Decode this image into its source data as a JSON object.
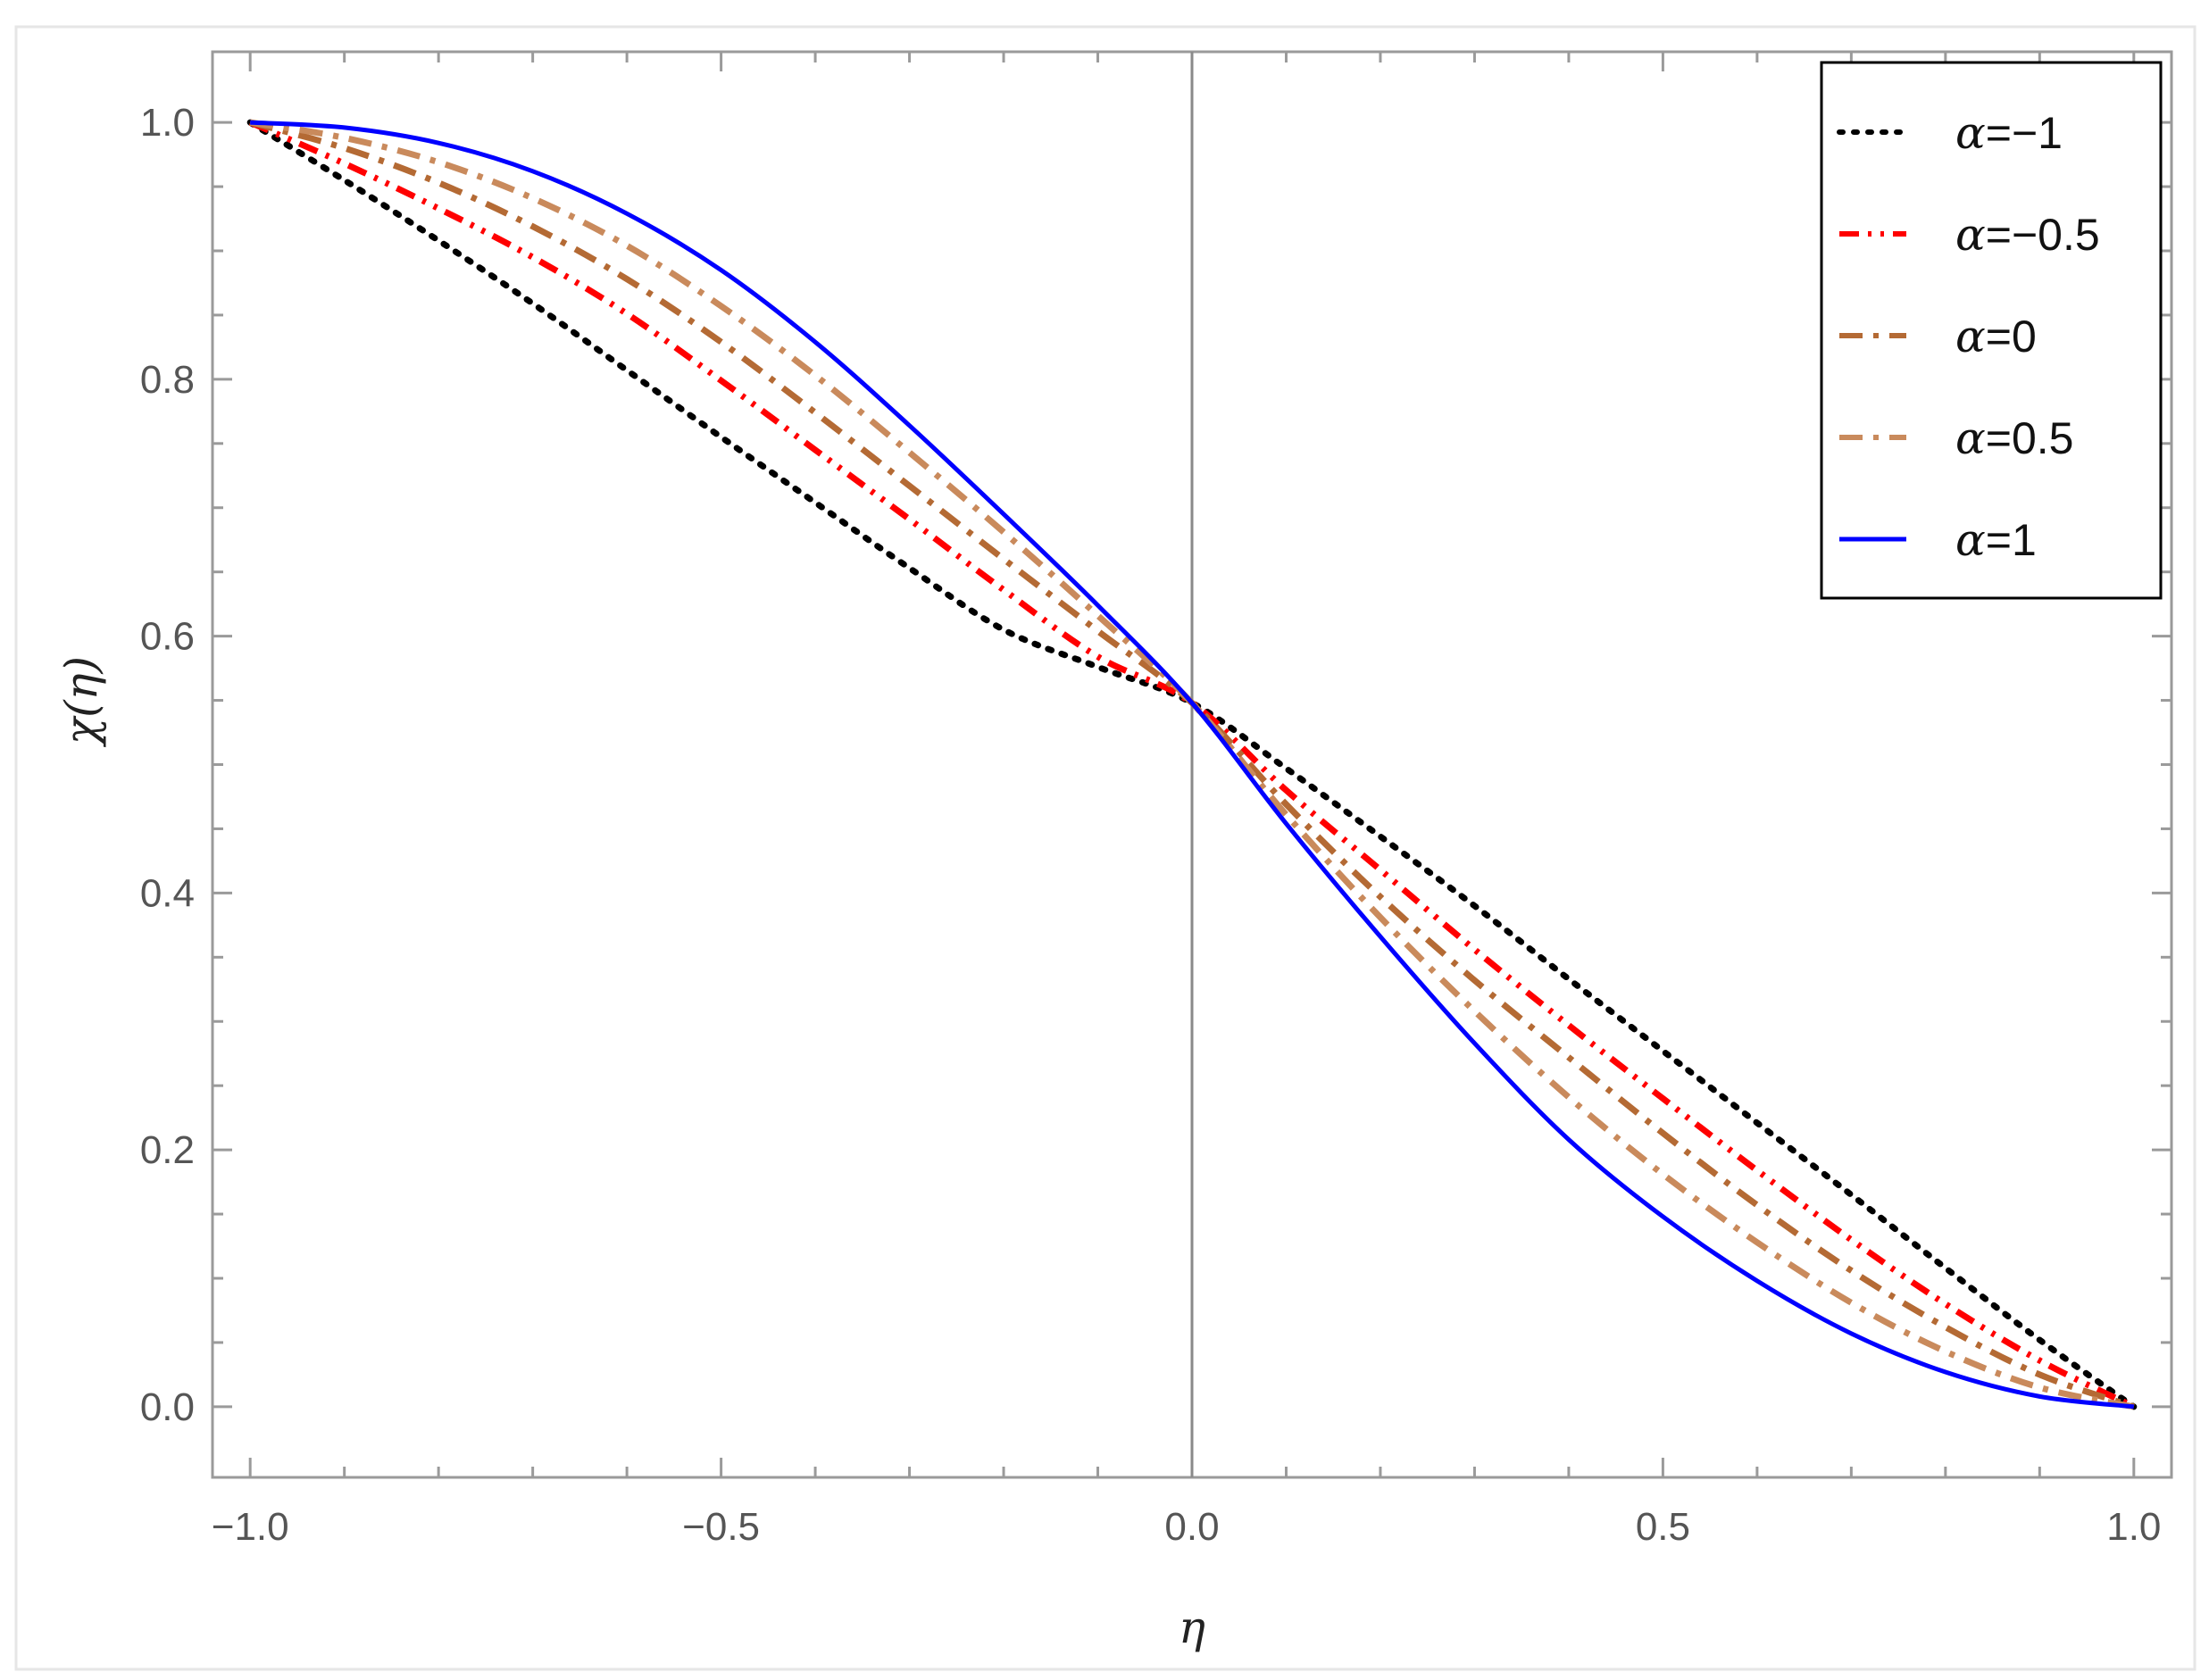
{
  "chart_data": {
    "type": "line",
    "xlabel": "η",
    "ylabel": "χ(η)",
    "xlim": [
      -1.04,
      1.04
    ],
    "ylim": [
      -0.055,
      1.055
    ],
    "x_ticks": [
      -1.0,
      -0.5,
      0.0,
      0.5,
      1.0
    ],
    "x_tick_labels": [
      "−1.0",
      "−0.5",
      "0.0",
      "0.5",
      "1.0"
    ],
    "y_ticks": [
      0.0,
      0.2,
      0.4,
      0.6,
      0.8,
      1.0
    ],
    "y_tick_labels": [
      "0.0",
      "0.2",
      "0.4",
      "0.6",
      "0.8",
      "1.0"
    ],
    "grid": false,
    "legend_position": "top-right",
    "x": [
      -1.0,
      -0.9,
      -0.8,
      -0.7,
      -0.6,
      -0.5,
      -0.4,
      -0.3,
      -0.2,
      -0.1,
      0.0,
      0.1,
      0.2,
      0.3,
      0.4,
      0.5,
      0.6,
      0.7,
      0.8,
      0.9,
      1.0
    ],
    "series": [
      {
        "name": "α=−1",
        "legend_prefix": "α",
        "legend_value": "=−1",
        "color": "#000000",
        "style": "dotted",
        "values": [
          1.0,
          0.955,
          0.908,
          0.859,
          0.807,
          0.755,
          0.704,
          0.653,
          0.605,
          0.576,
          0.548,
          0.497,
          0.444,
          0.39,
          0.333,
          0.277,
          0.221,
          0.165,
          0.108,
          0.052,
          0.0
        ]
      },
      {
        "name": "α=−0.5",
        "legend_prefix": "α",
        "legend_value": "=−0.5",
        "color": "#ff0000",
        "style": "dash-dot-dot",
        "values": [
          1.0,
          0.968,
          0.933,
          0.895,
          0.851,
          0.799,
          0.745,
          0.691,
          0.636,
          0.584,
          0.548,
          0.48,
          0.418,
          0.356,
          0.297,
          0.24,
          0.184,
          0.13,
          0.08,
          0.036,
          0.0
        ]
      },
      {
        "name": "α=0",
        "legend_prefix": "α",
        "legend_value": "=0",
        "color": "#b46a34",
        "style": "dash-dot",
        "values": [
          1.0,
          0.98,
          0.953,
          0.919,
          0.878,
          0.829,
          0.774,
          0.717,
          0.66,
          0.604,
          0.548,
          0.469,
          0.397,
          0.332,
          0.272,
          0.213,
          0.157,
          0.106,
          0.062,
          0.025,
          0.0
        ]
      },
      {
        "name": "α=0.5",
        "legend_prefix": "α",
        "legend_value": "=0.5",
        "color": "#c98a5c",
        "style": "dash-dot",
        "values": [
          1.0,
          0.988,
          0.969,
          0.941,
          0.904,
          0.857,
          0.803,
          0.743,
          0.681,
          0.616,
          0.548,
          0.461,
          0.381,
          0.308,
          0.241,
          0.181,
          0.128,
          0.081,
          0.043,
          0.015,
          0.0
        ]
      },
      {
        "name": "α=1",
        "legend_prefix": "α",
        "legend_value": "=1",
        "color": "#0000ff",
        "style": "solid",
        "values": [
          1.0,
          0.996,
          0.984,
          0.962,
          0.929,
          0.885,
          0.829,
          0.764,
          0.695,
          0.624,
          0.548,
          0.454,
          0.366,
          0.283,
          0.208,
          0.148,
          0.098,
          0.057,
          0.027,
          0.008,
          0.0
        ]
      }
    ]
  }
}
